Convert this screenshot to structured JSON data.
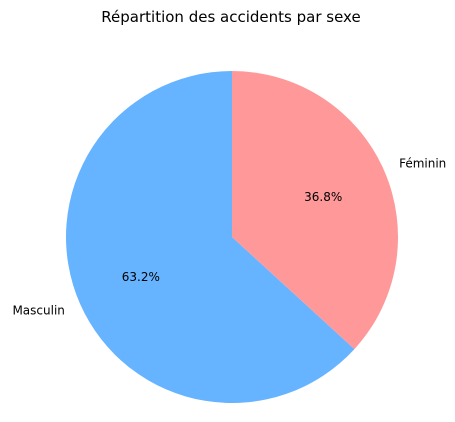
{
  "chart_data": {
    "type": "pie",
    "title": "Répartition des accidents par sexe",
    "categories": [
      "Masculin",
      "Féminin"
    ],
    "values": [
      63.2,
      36.8
    ],
    "value_labels": [
      "63.2%",
      "36.8%"
    ],
    "colors": [
      "#66b3ff",
      "#ff9999"
    ],
    "start_angle_deg": 90,
    "direction": "counterclockwise"
  }
}
